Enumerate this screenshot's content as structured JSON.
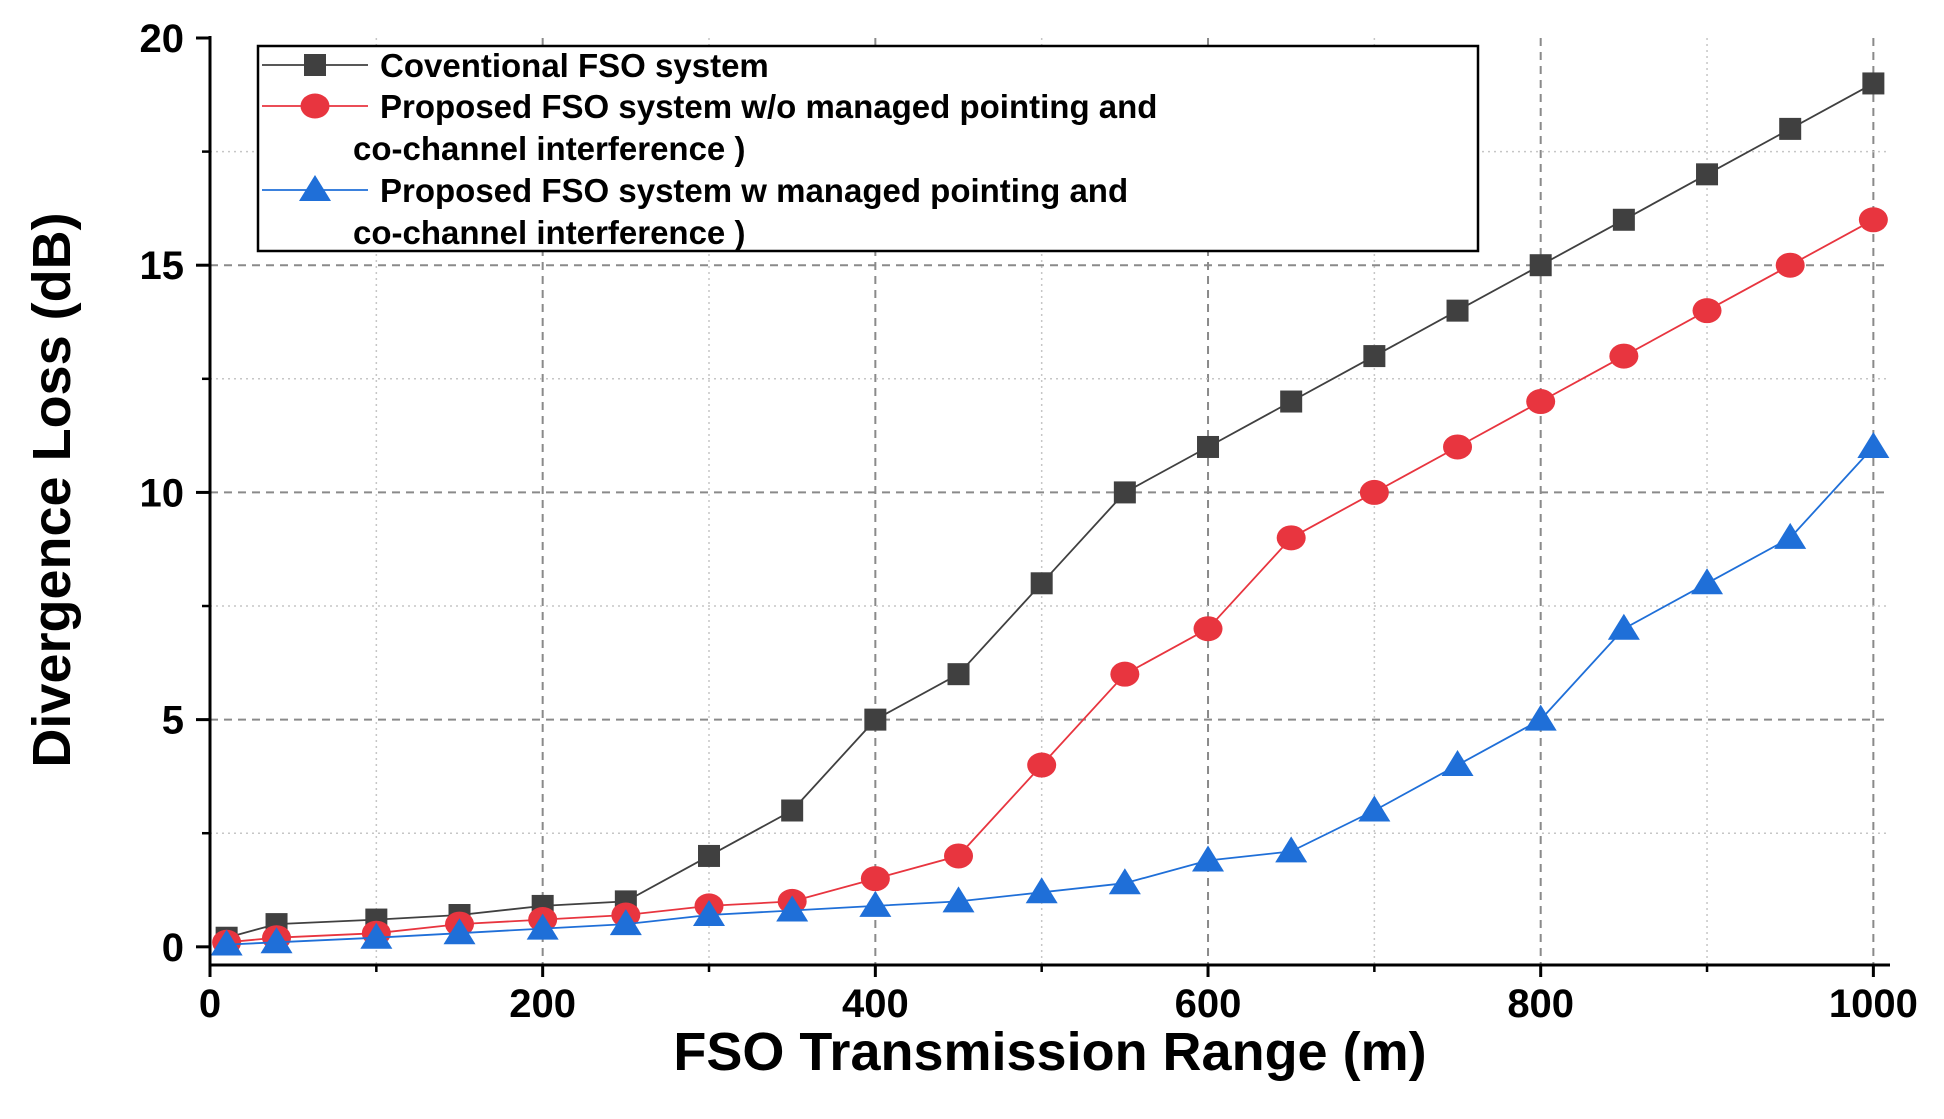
{
  "chart_data": {
    "type": "line",
    "title": "",
    "xlabel": "FSO Transmission Range (m)",
    "ylabel": "Divergence Loss (dB)",
    "xlim": [
      0,
      1010
    ],
    "ylim": [
      -0.4,
      20
    ],
    "xticks": [
      "0",
      "200",
      "400",
      "600",
      "800",
      "1000"
    ],
    "yticks": [
      "0",
      "5",
      "10",
      "15",
      "20"
    ],
    "grid": true,
    "legend_position": "top-left",
    "series": [
      {
        "name": "Coventional FSO system",
        "legend_lines": [
          "Coventional FSO system"
        ],
        "color": "#404040",
        "marker": "square",
        "x": [
          10,
          40,
          100,
          150,
          200,
          250,
          300,
          350,
          400,
          450,
          500,
          550,
          600,
          650,
          700,
          750,
          800,
          850,
          900,
          950,
          1000
        ],
        "y": [
          0.2,
          0.5,
          0.6,
          0.7,
          0.9,
          1.0,
          2.0,
          3.0,
          5.0,
          6.0,
          8.0,
          10.0,
          11.0,
          12.0,
          13.0,
          14.0,
          15.0,
          16.0,
          17.0,
          18.0,
          19.0
        ]
      },
      {
        "name": "Proposed FSO system w/o managed pointing and co-channel interference )",
        "legend_lines": [
          "Proposed FSO system w/o managed pointing and",
          "co-channel interference )"
        ],
        "color": "#e8353f",
        "marker": "circle",
        "x": [
          10,
          40,
          100,
          150,
          200,
          250,
          300,
          350,
          400,
          450,
          500,
          550,
          600,
          650,
          700,
          750,
          800,
          850,
          900,
          950,
          1000
        ],
        "y": [
          0.1,
          0.2,
          0.3,
          0.5,
          0.6,
          0.7,
          0.9,
          1.0,
          1.5,
          2.0,
          4.0,
          6.0,
          7.0,
          9.0,
          10.0,
          11.0,
          12.0,
          13.0,
          14.0,
          15.0,
          16.0
        ]
      },
      {
        "name": "Proposed FSO system w managed pointing and co-channel interference )",
        "legend_lines": [
          "Proposed FSO system w managed pointing and",
          "co-channel interference  )"
        ],
        "color": "#1f6fd8",
        "marker": "triangle",
        "x": [
          10,
          40,
          100,
          150,
          200,
          250,
          300,
          350,
          400,
          450,
          500,
          550,
          600,
          650,
          700,
          750,
          800,
          850,
          900,
          950,
          1000
        ],
        "y": [
          0.05,
          0.1,
          0.2,
          0.3,
          0.4,
          0.5,
          0.7,
          0.8,
          0.9,
          1.0,
          1.2,
          1.4,
          1.9,
          2.1,
          3.0,
          4.0,
          5.0,
          7.0,
          8.0,
          9.0,
          11.0
        ]
      }
    ]
  }
}
